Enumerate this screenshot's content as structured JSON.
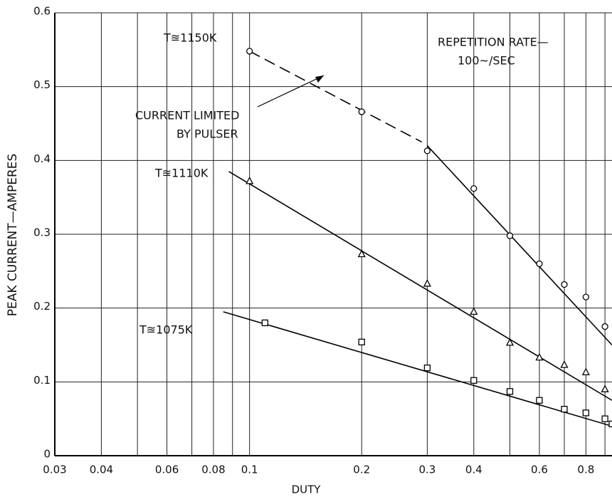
{
  "chart_data": {
    "type": "scatter",
    "x_label": "DUTY",
    "y_label": "PEAK CURRENT—AMPERES",
    "xscale": "log",
    "xlim": [
      0.03,
      0.94
    ],
    "ylim": [
      0,
      0.6
    ],
    "xticks": [
      0.03,
      0.04,
      0.06,
      0.08,
      0.1,
      0.2,
      0.3,
      0.4,
      0.6,
      0.8
    ],
    "xgrid_minor": [
      0.05,
      0.07,
      0.09,
      0.5,
      0.7,
      0.9
    ],
    "yticks": [
      0,
      0.1,
      0.2,
      0.3,
      0.4,
      0.5,
      0.6
    ],
    "grid": true,
    "color": "#000000",
    "series": [
      {
        "name": "T≊1150K",
        "marker": "circle",
        "x": [
          0.1,
          0.2,
          0.3,
          0.4,
          0.5,
          0.6,
          0.7,
          0.8,
          0.9
        ],
        "values": [
          0.548,
          0.466,
          0.413,
          0.362,
          0.298,
          0.26,
          0.232,
          0.215,
          0.175
        ],
        "fits": [
          {
            "style": "dashed",
            "x": [
              0.1,
              0.29
            ],
            "values": [
              0.548,
              0.425
            ]
          },
          {
            "style": "solid",
            "x": [
              0.3,
              0.94
            ],
            "values": [
              0.42,
              0.15
            ]
          }
        ]
      },
      {
        "name": "T≊1110K",
        "marker": "triangle",
        "x": [
          0.1,
          0.2,
          0.3,
          0.4,
          0.5,
          0.6,
          0.7,
          0.8,
          0.9
        ],
        "values": [
          0.372,
          0.273,
          0.233,
          0.195,
          0.153,
          0.133,
          0.123,
          0.113,
          0.09
        ],
        "fits": [
          {
            "style": "solid",
            "x": [
              0.088,
              0.94
            ],
            "values": [
              0.385,
              0.075
            ]
          }
        ]
      },
      {
        "name": "T≊1075K",
        "marker": "square",
        "x": [
          0.11,
          0.2,
          0.3,
          0.4,
          0.5,
          0.6,
          0.7,
          0.8,
          0.9,
          0.94
        ],
        "values": [
          0.18,
          0.154,
          0.119,
          0.102,
          0.087,
          0.075,
          0.063,
          0.058,
          0.05,
          0.043
        ],
        "fits": [
          {
            "style": "solid",
            "x": [
              0.085,
              0.94
            ],
            "values": [
              0.195,
              0.04
            ]
          }
        ]
      }
    ],
    "annotations": [
      {
        "lines": [
          "REPETITION RATE—",
          "100~/SEC"
        ]
      },
      {
        "lines": [
          "CURRENT LIMITED",
          "BY PULSER"
        ]
      }
    ]
  }
}
